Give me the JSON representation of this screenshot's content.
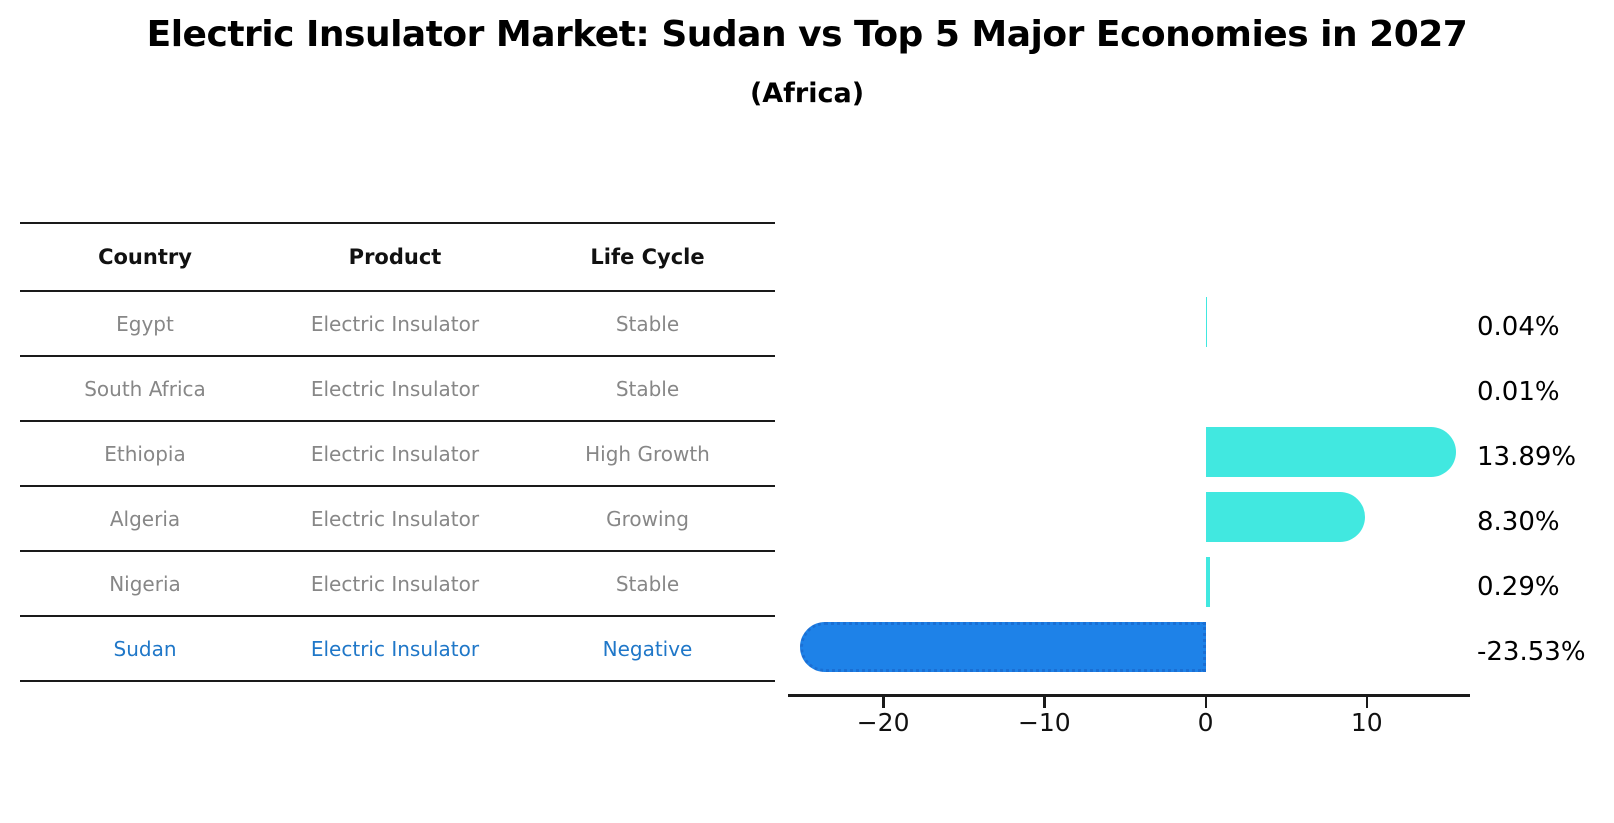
{
  "title": "Electric Insulator Market: Sudan vs Top 5 Major Economies in 2027",
  "subtitle": "(Africa)",
  "table": {
    "headers": [
      "Country",
      "Product",
      "Life Cycle"
    ],
    "rows": [
      {
        "country": "Egypt",
        "product": "Electric Insulator",
        "life_cycle": "Stable",
        "highlight": false
      },
      {
        "country": "South Africa",
        "product": "Electric Insulator",
        "life_cycle": "Stable",
        "highlight": false
      },
      {
        "country": "Ethiopia",
        "product": "Electric Insulator",
        "life_cycle": "High Growth",
        "highlight": false
      },
      {
        "country": "Algeria",
        "product": "Electric Insulator",
        "life_cycle": "Growing",
        "highlight": false
      },
      {
        "country": "Nigeria",
        "product": "Electric Insulator",
        "life_cycle": "Stable",
        "highlight": false
      },
      {
        "country": "Sudan",
        "product": "Electric Insulator",
        "life_cycle": "Negative",
        "highlight": true
      }
    ]
  },
  "chart_data": {
    "type": "bar",
    "orientation": "horizontal",
    "title": "Electric Insulator Market: Sudan vs Top 5 Major Economies in 2027 (Africa)",
    "xlabel": "",
    "ylabel": "",
    "grid": false,
    "legend": false,
    "categories": [
      "Egypt",
      "South Africa",
      "Ethiopia",
      "Algeria",
      "Nigeria",
      "Sudan"
    ],
    "values": [
      0.04,
      0.01,
      13.89,
      8.3,
      0.29,
      -23.53
    ],
    "value_labels": [
      "0.04%",
      "0.01%",
      "13.89%",
      "8.30%",
      "0.29%",
      "-23.53%"
    ],
    "xlim": [
      -25.9,
      16.4
    ],
    "xticks": [
      -20,
      -10,
      0,
      10
    ],
    "xtick_labels": [
      "−20",
      "−10",
      "0",
      "10"
    ],
    "colors": {
      "positive_bar": "#41e8e0",
      "negative_bar": "#1e82e8",
      "negative_bar_border": "#1a6fd4",
      "highlight_text": "#1f77c8",
      "table_text": "#878787",
      "axis": "#1a1a1a"
    }
  }
}
